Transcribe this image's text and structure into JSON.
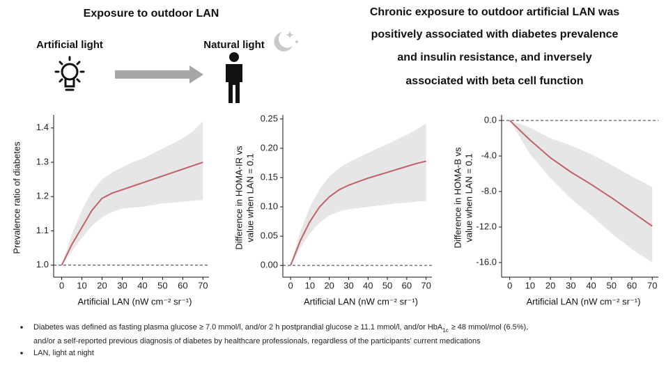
{
  "header": {
    "left_title": "Exposure to outdoor LAN",
    "artificial_label": "Artificial light",
    "natural_label": "Natural light",
    "summary": [
      "Chronic exposure to outdoor artificial LAN was",
      "positively associated with diabetes prevalence",
      "and insulin resistance, and inversely",
      "associated with beta cell function"
    ]
  },
  "chart_data": [
    {
      "type": "line",
      "xlabel": "Artificial LAN (nW cm⁻² sr⁻¹)",
      "ylabel": [
        "Prevalence ratio of diabetes"
      ],
      "x": [
        0,
        5,
        10,
        15,
        20,
        25,
        30,
        35,
        40,
        45,
        50,
        55,
        60,
        65,
        70
      ],
      "series": [
        {
          "name": "Prevalence ratio",
          "color": "#c0606a",
          "values": [
            1.0,
            1.06,
            1.11,
            1.16,
            1.195,
            1.21,
            1.22,
            1.23,
            1.24,
            1.25,
            1.26,
            1.27,
            1.28,
            1.29,
            1.3
          ]
        }
      ],
      "band": {
        "color": "#e6e6e6",
        "lower": [
          1.0,
          1.04,
          1.08,
          1.115,
          1.14,
          1.155,
          1.165,
          1.168,
          1.17,
          1.175,
          1.18,
          1.182,
          1.185,
          1.188,
          1.19
        ],
        "upper": [
          1.0,
          1.09,
          1.16,
          1.215,
          1.25,
          1.27,
          1.285,
          1.3,
          1.31,
          1.325,
          1.34,
          1.355,
          1.37,
          1.39,
          1.42
        ]
      },
      "hline": 1.0,
      "xlim": [
        -4,
        73
      ],
      "ylim": [
        0.965,
        1.428
      ],
      "xticks": [
        0,
        10,
        20,
        30,
        40,
        50,
        60,
        70
      ],
      "yticks": [
        {
          "value": 1.0,
          "label": "1.0"
        },
        1.1,
        1.2,
        1.3,
        1.4
      ]
    },
    {
      "type": "line",
      "xlabel": "Artificial LAN (nW cm⁻² sr⁻¹)",
      "ylabel": [
        "Difference in HOMA-IR vs",
        "value when LAN = 0.1"
      ],
      "x": [
        0,
        5,
        10,
        15,
        20,
        25,
        30,
        35,
        40,
        45,
        50,
        55,
        60,
        65,
        70
      ],
      "series": [
        {
          "name": "HOMA-IR difference",
          "color": "#c0606a",
          "values": [
            0.0,
            0.042,
            0.075,
            0.1,
            0.117,
            0.129,
            0.137,
            0.143,
            0.149,
            0.154,
            0.159,
            0.164,
            0.169,
            0.174,
            0.178
          ]
        }
      ],
      "band": {
        "color": "#e6e6e6",
        "lower": [
          0.0,
          0.03,
          0.055,
          0.073,
          0.085,
          0.092,
          0.096,
          0.098,
          0.1,
          0.102,
          0.104,
          0.106,
          0.107,
          0.109,
          0.11
        ],
        "upper": [
          0.0,
          0.058,
          0.1,
          0.13,
          0.152,
          0.166,
          0.176,
          0.184,
          0.192,
          0.2,
          0.207,
          0.215,
          0.223,
          0.232,
          0.242
        ]
      },
      "hline": 0.0,
      "xlim": [
        -4,
        73
      ],
      "ylim": [
        -0.02,
        0.251
      ],
      "xticks": [
        0,
        10,
        20,
        30,
        40,
        50,
        60,
        70
      ],
      "yticks": [
        {
          "value": 0,
          "label": "0.00"
        },
        0.05,
        {
          "value": 0.1,
          "label": "0.10"
        },
        0.15,
        {
          "value": 0.2,
          "label": "0.20"
        },
        0.25
      ]
    },
    {
      "type": "line",
      "xlabel": "Artificial LAN (nW cm⁻² sr⁻¹)",
      "ylabel": [
        "Difference in HOMA-B vs",
        "value when LAN = 0.1"
      ],
      "x": [
        0,
        10,
        20,
        30,
        40,
        50,
        60,
        70
      ],
      "series": [
        {
          "name": "HOMA-B difference",
          "color": "#c0606a",
          "values": [
            0.0,
            -2.2,
            -4.2,
            -5.8,
            -7.2,
            -8.7,
            -10.3,
            -11.9
          ]
        }
      ],
      "band": {
        "color": "#e6e6e6",
        "lower": [
          0.0,
          -3.8,
          -6.5,
          -8.8,
          -10.7,
          -12.7,
          -14.5,
          -16.0
        ],
        "upper": [
          0.0,
          -0.8,
          -2.0,
          -2.8,
          -3.8,
          -5.0,
          -6.3,
          -7.5
        ]
      },
      "hline": 0.0,
      "xlim": [
        -4,
        73
      ],
      "ylim": [
        -17.65,
        0.24
      ],
      "xticks": [
        0,
        10,
        20,
        30,
        40,
        50,
        60,
        70
      ],
      "yticks": [
        {
          "value": 0,
          "label": "0.0"
        },
        {
          "value": -4,
          "label": "-4.0"
        },
        {
          "value": -8,
          "label": "-8.0"
        },
        {
          "value": -12,
          "label": "-12.0"
        },
        {
          "value": -16,
          "label": "-16.0"
        }
      ]
    }
  ],
  "footnotes": [
    [
      "Diabetes was defined as fasting plasma glucose ≥ 7.0 mmol/l, and/or 2 h postprandial glucose ≥ 11.1 mmol/l, and/or HbA",
      "1c",
      "≥ 48 mmol/mol (6.5%),"
    ],
    [
      "and/or a self-reported previous diagnosis of diabetes by healthcare professionals, regardless of the participants’ current medications"
    ],
    [
      "LAN, light at night"
    ]
  ]
}
